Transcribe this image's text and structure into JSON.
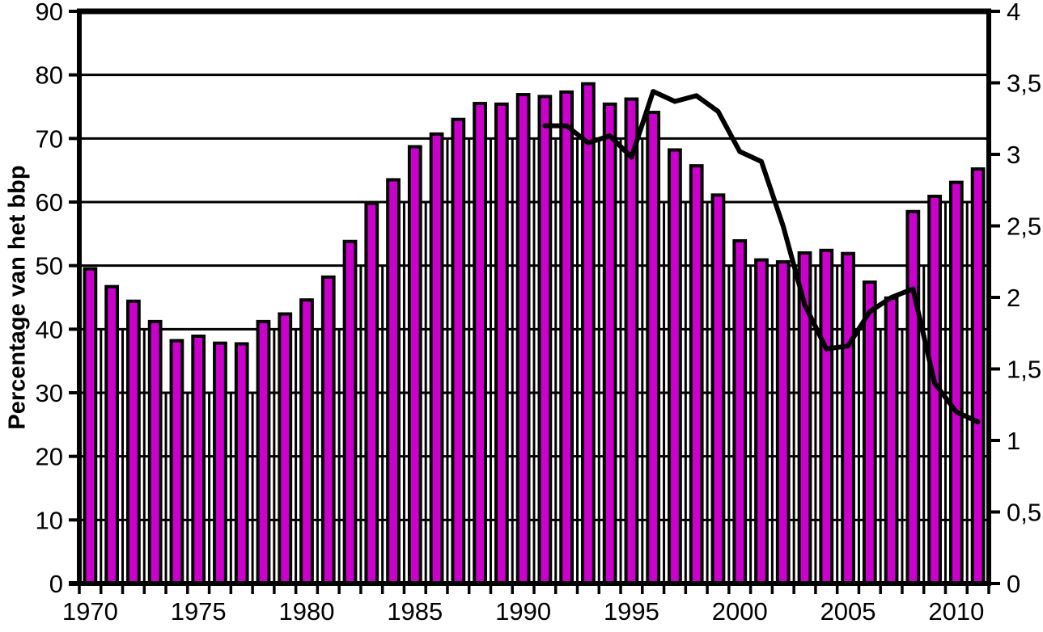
{
  "chart_data": {
    "type": "bar",
    "title": "",
    "ylabel": "Percentage van het bbp",
    "left_axis": {
      "min": 0,
      "max": 90,
      "tick_step": 10,
      "tick_labels": [
        "0",
        "10",
        "20",
        "30",
        "40",
        "50",
        "60",
        "70",
        "80",
        "90"
      ]
    },
    "right_axis": {
      "min": 0,
      "max": 4,
      "tick_step": 0.5,
      "tick_labels": [
        "0",
        "0,5",
        "1",
        "1,5",
        "2",
        "2,5",
        "3",
        "3,5",
        "4"
      ]
    },
    "x_axis": {
      "tick_every_years": 1,
      "label_years": [
        "1970",
        "1975",
        "1980",
        "1985",
        "1990",
        "1995",
        "2000",
        "2005",
        "2010"
      ]
    },
    "categories": [
      1970,
      1971,
      1972,
      1973,
      1974,
      1975,
      1976,
      1977,
      1978,
      1979,
      1980,
      1981,
      1982,
      1983,
      1984,
      1985,
      1986,
      1987,
      1988,
      1989,
      1990,
      1991,
      1992,
      1993,
      1994,
      1995,
      1996,
      1997,
      1998,
      1999,
      2000,
      2001,
      2002,
      2003,
      2004,
      2005,
      2006,
      2007,
      2008,
      2009,
      2010,
      2011
    ],
    "series": [
      {
        "name": "bars-percentage-van-het-bbp",
        "type": "bar",
        "axis": "left",
        "start_year": 1970,
        "values": [
          49.5,
          46.7,
          44.4,
          41.2,
          38.2,
          38.9,
          37.8,
          37.7,
          41.2,
          42.4,
          44.6,
          48.2,
          53.8,
          59.8,
          63.5,
          68.7,
          70.7,
          73.0,
          75.5,
          75.4,
          76.9,
          76.6,
          77.3,
          78.6,
          75.4,
          76.2,
          74.1,
          68.2,
          65.7,
          61.1,
          53.9,
          50.9,
          50.6,
          52.0,
          52.4,
          51.9,
          47.4,
          44.9,
          58.5,
          60.9,
          63.1,
          65.2
        ]
      },
      {
        "name": "line-right-axis",
        "type": "line",
        "axis": "right",
        "start_year": 1991,
        "values": [
          3.2,
          3.2,
          3.08,
          3.13,
          2.98,
          3.44,
          3.37,
          3.41,
          3.3,
          3.02,
          2.95,
          2.5,
          1.95,
          1.64,
          1.66,
          1.9,
          2.0,
          2.06,
          1.4,
          1.2,
          1.13
        ]
      }
    ],
    "grid": "horizontal-every-10-plus-vertical-segments-between-bars",
    "legend": "none",
    "colors": {
      "bar_fill": "#CC00CC",
      "bar_outline": "#000000",
      "line": "#000000",
      "grid": "#000000",
      "background": "#FFFFFF"
    }
  }
}
